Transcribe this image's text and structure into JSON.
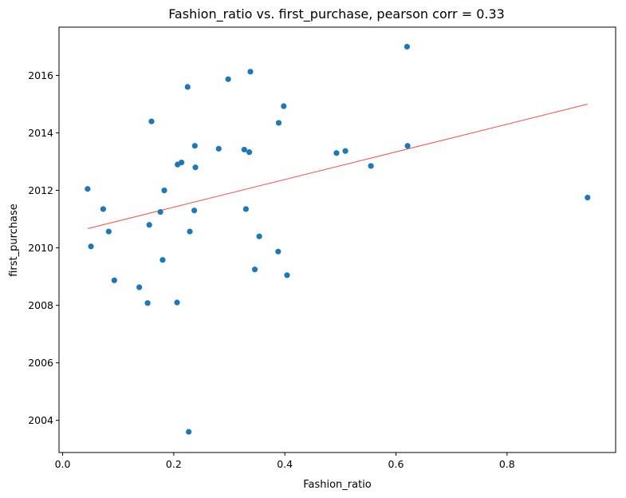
{
  "chart_data": {
    "type": "scatter",
    "title": "Fashion_ratio vs. first_purchase, pearson corr = 0.33",
    "xlabel": "Fashion_ratio",
    "ylabel": "first_purchase",
    "xlim": [
      -0.0065,
      0.9955
    ],
    "ylim": [
      2002.88,
      2017.68
    ],
    "x_ticks": [
      0.0,
      0.2,
      0.4,
      0.6,
      0.8
    ],
    "x_tick_labels": [
      "0.0",
      "0.2",
      "0.4",
      "0.6",
      "0.8"
    ],
    "y_ticks": [
      2004,
      2006,
      2008,
      2010,
      2012,
      2014,
      2016
    ],
    "y_tick_labels": [
      "2004",
      "2006",
      "2008",
      "2010",
      "2012",
      "2014",
      "2016"
    ],
    "grid": false,
    "marker_color": "#1f77b4",
    "series": [
      {
        "x": [
          0.045,
          0.051,
          0.073,
          0.083,
          0.093,
          0.138,
          0.153,
          0.156,
          0.16,
          0.176,
          0.18,
          0.183,
          0.206,
          0.207,
          0.214,
          0.225,
          0.227,
          0.229,
          0.237,
          0.238,
          0.239,
          0.281,
          0.298,
          0.327,
          0.33,
          0.336,
          0.338,
          0.346,
          0.354,
          0.388,
          0.389,
          0.398,
          0.404,
          0.493,
          0.509,
          0.555,
          0.62,
          0.621,
          0.945
        ],
        "y": [
          2012.05,
          2010.05,
          2011.35,
          2010.57,
          2008.87,
          2008.63,
          2008.08,
          2010.8,
          2014.4,
          2011.25,
          2009.58,
          2012.0,
          2008.1,
          2012.9,
          2012.97,
          2015.6,
          2003.6,
          2010.57,
          2011.3,
          2013.55,
          2012.8,
          2013.45,
          2015.87,
          2013.42,
          2011.35,
          2013.33,
          2016.13,
          2009.25,
          2010.4,
          2009.87,
          2014.35,
          2014.93,
          2009.05,
          2013.3,
          2013.37,
          2012.85,
          2017.0,
          2013.55,
          2011.75
        ]
      }
    ],
    "trendline": {
      "color": "#ef5350",
      "x": [
        0.045,
        0.945
      ],
      "y": [
        2010.67,
        2015.0
      ]
    }
  }
}
